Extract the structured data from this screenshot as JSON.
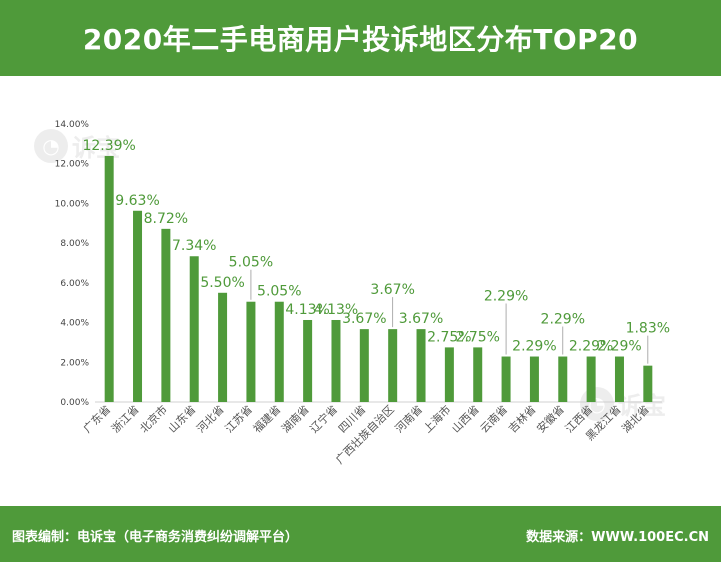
{
  "header": {
    "title": "2020年二手电商用户投诉地区分布TOP20"
  },
  "footer": {
    "credit": "图表编制：电诉宝（电子商务消费纠纷调解平台）",
    "source": "数据来源：WWW.100EC.CN"
  },
  "watermark": {
    "text": "诉宝",
    "icon": "diansubao-logo-icon"
  },
  "colors": {
    "brand": "#4f9a3a",
    "bar": "#4f9a3a",
    "label": "#4f9a3a"
  },
  "chart_data": {
    "type": "bar",
    "title": "2020年二手电商用户投诉地区分布TOP20",
    "xlabel": "",
    "ylabel": "",
    "ylim": [
      0,
      14
    ],
    "y_ticks": [
      "0.00%",
      "2.00%",
      "4.00%",
      "6.00%",
      "8.00%",
      "10.00%",
      "12.00%",
      "14.00%"
    ],
    "grid": false,
    "legend": "none",
    "categories": [
      "广东省",
      "浙江省",
      "北京市",
      "山东省",
      "河北省",
      "江苏省",
      "福建省",
      "湖南省",
      "辽宁省",
      "四川省",
      "广西壮族自治区",
      "河南省",
      "上海市",
      "山西省",
      "云南省",
      "吉林省",
      "安徽省",
      "江西省",
      "黑龙江省",
      "湖北省"
    ],
    "values": [
      12.39,
      9.63,
      8.72,
      7.34,
      5.5,
      5.05,
      5.05,
      4.13,
      4.13,
      3.67,
      3.67,
      3.67,
      2.75,
      2.75,
      2.29,
      2.29,
      2.29,
      2.29,
      2.29,
      1.83
    ],
    "data_labels": [
      "12.39%",
      "9.63%",
      "8.72%",
      "7.34%",
      "5.50%",
      "5.05%",
      "5.05%",
      "4.13%",
      "4.13%",
      "3.67%",
      "3.67%",
      "3.67%",
      "2.75%",
      "2.75%",
      "2.29%",
      "2.29%",
      "2.29%",
      "2.29%",
      "2.29%",
      "1.83%"
    ]
  }
}
